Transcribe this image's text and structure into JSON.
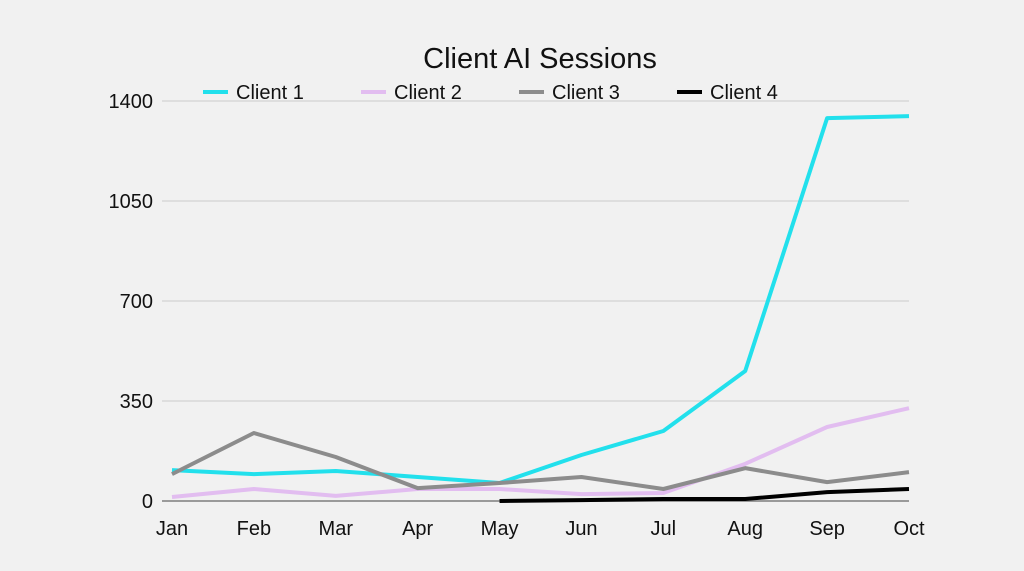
{
  "chart_data": {
    "type": "line",
    "title": "Client AI Sessions",
    "xlabel": "",
    "ylabel": "",
    "categories": [
      "Jan",
      "Feb",
      "Mar",
      "Apr",
      "May",
      "Jun",
      "Jul",
      "Aug",
      "Sep",
      "Oct"
    ],
    "ylim": [
      0,
      1400
    ],
    "yticks": [
      "0",
      "350",
      "700",
      "1050",
      "1400"
    ],
    "grid": "horizontal",
    "legend": "top",
    "series": [
      {
        "name": "Client 1",
        "color": "#22e0ec",
        "values": [
          108,
          94,
          105,
          84,
          63,
          161,
          245,
          455,
          1340,
          1347
        ]
      },
      {
        "name": "Client 2",
        "color": "#e2bdf0",
        "values": [
          14,
          42,
          18,
          42,
          42,
          24,
          28,
          130,
          259,
          325
        ]
      },
      {
        "name": "Client 3",
        "color": "#8c8c8c",
        "values": [
          94,
          238,
          154,
          45,
          63,
          84,
          42,
          115,
          66,
          101
        ]
      },
      {
        "name": "Client 4",
        "color": "#000000",
        "values": [
          null,
          null,
          null,
          null,
          0,
          3,
          7,
          7,
          31,
          42
        ]
      }
    ]
  }
}
